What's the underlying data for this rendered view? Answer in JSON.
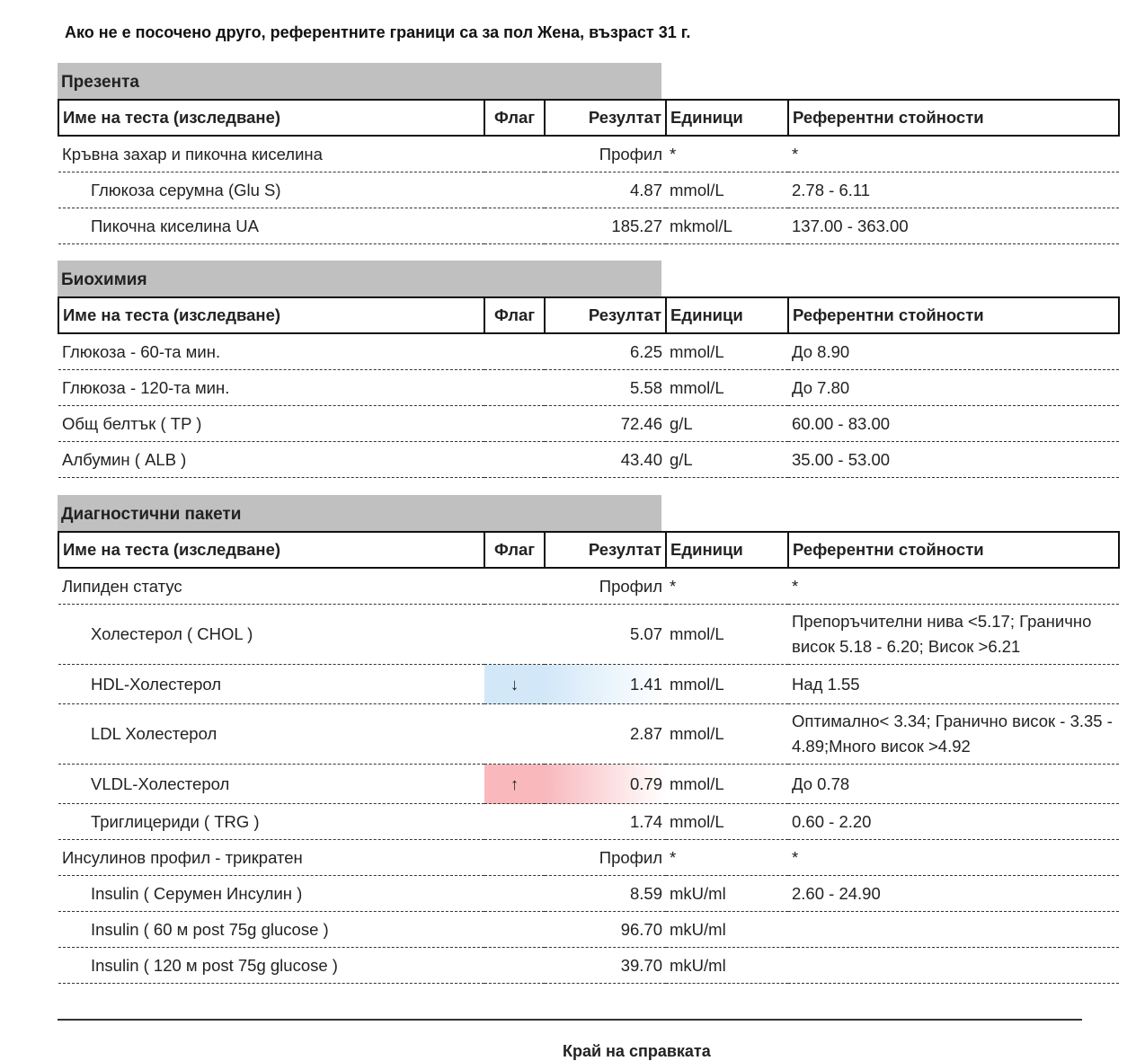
{
  "note": "Ако не е посочено друго, референтните граници са за пол Жена, възраст 31 г.",
  "headers": {
    "name": "Име на теста (изследване)",
    "flag": "Флаг",
    "result": "Резултат",
    "units": "Единици",
    "ref": "Референтни стойности"
  },
  "sections": [
    {
      "title": "Презента",
      "rows": [
        {
          "name": "Кръвна захар и пикочна киселина",
          "flag": "",
          "result": "Профил",
          "units": "*",
          "ref": "*",
          "sub": false
        },
        {
          "name": "Глюкоза серумна (Glu S)",
          "flag": "",
          "result": "4.87",
          "units": "mmol/L",
          "ref": "2.78 - 6.11",
          "sub": true
        },
        {
          "name": "Пикочна киселина UA",
          "flag": "",
          "result": "185.27",
          "units": "mkmol/L",
          "ref": "137.00 - 363.00",
          "sub": true
        }
      ]
    },
    {
      "title": "Биохимия",
      "rows": [
        {
          "name": "Глюкоза - 60-та мин.",
          "flag": "",
          "result": "6.25",
          "units": "mmol/L",
          "ref": "До 8.90",
          "sub": false
        },
        {
          "name": "Глюкоза - 120-та мин.",
          "flag": "",
          "result": "5.58",
          "units": "mmol/L",
          "ref": "До 7.80",
          "sub": false
        },
        {
          "name": "Общ белтък ( TP )",
          "flag": "",
          "result": "72.46",
          "units": "g/L",
          "ref": "60.00 - 83.00",
          "sub": false
        },
        {
          "name": "Албумин ( ALB )",
          "flag": "",
          "result": "43.40",
          "units": "g/L",
          "ref": "35.00 - 53.00",
          "sub": false
        }
      ]
    },
    {
      "title": "Диагностични пакети",
      "rows": [
        {
          "name": "Липиден статус",
          "flag": "",
          "result": "Профил",
          "units": "*",
          "ref": "*",
          "sub": false
        },
        {
          "name": "Холестерол ( CHOL )",
          "flag": "",
          "result": "5.07",
          "units": "mmol/L",
          "ref": "Препоръчителни нива <5.17; Гранично висок 5.18 - 6.20; Висок >6.21",
          "sub": true,
          "tall": true
        },
        {
          "name": "HDL-Холестерол",
          "flag": "↓",
          "status": "low",
          "result": "1.41",
          "units": "mmol/L",
          "ref": "Над 1.55",
          "sub": true,
          "mid": true
        },
        {
          "name": "LDL Холестерол",
          "flag": "",
          "result": "2.87",
          "units": "mmol/L",
          "ref": "Оптимално< 3.34; Гранично висок - 3.35 - 4.89;Много висок >4.92",
          "sub": true,
          "tall": true
        },
        {
          "name": "VLDL-Холестерол",
          "flag": "↑",
          "status": "high",
          "result": "0.79",
          "units": "mmol/L",
          "ref": "До 0.78",
          "sub": true,
          "mid": true
        },
        {
          "name": "Триглицериди ( TRG )",
          "flag": "",
          "result": "1.74",
          "units": "mmol/L",
          "ref": "0.60 - 2.20",
          "sub": true
        },
        {
          "name": "Инсулинов профил - трикратен",
          "flag": "",
          "result": "Профил",
          "units": "*",
          "ref": "*",
          "sub": false
        },
        {
          "name": "Insulin ( Серумен Инсулин )",
          "flag": "",
          "result": "8.59",
          "units": "mkU/ml",
          "ref": "2.60 - 24.90",
          "sub": true
        },
        {
          "name": "Insulin ( 60 м post 75g glucose )",
          "flag": "",
          "result": "96.70",
          "units": "mkU/ml",
          "ref": "",
          "sub": true
        },
        {
          "name": "Insulin ( 120 м post 75g glucose )",
          "flag": "",
          "result": "39.70",
          "units": "mkU/ml",
          "ref": "",
          "sub": true
        }
      ]
    }
  ],
  "footer": "Край на справката"
}
